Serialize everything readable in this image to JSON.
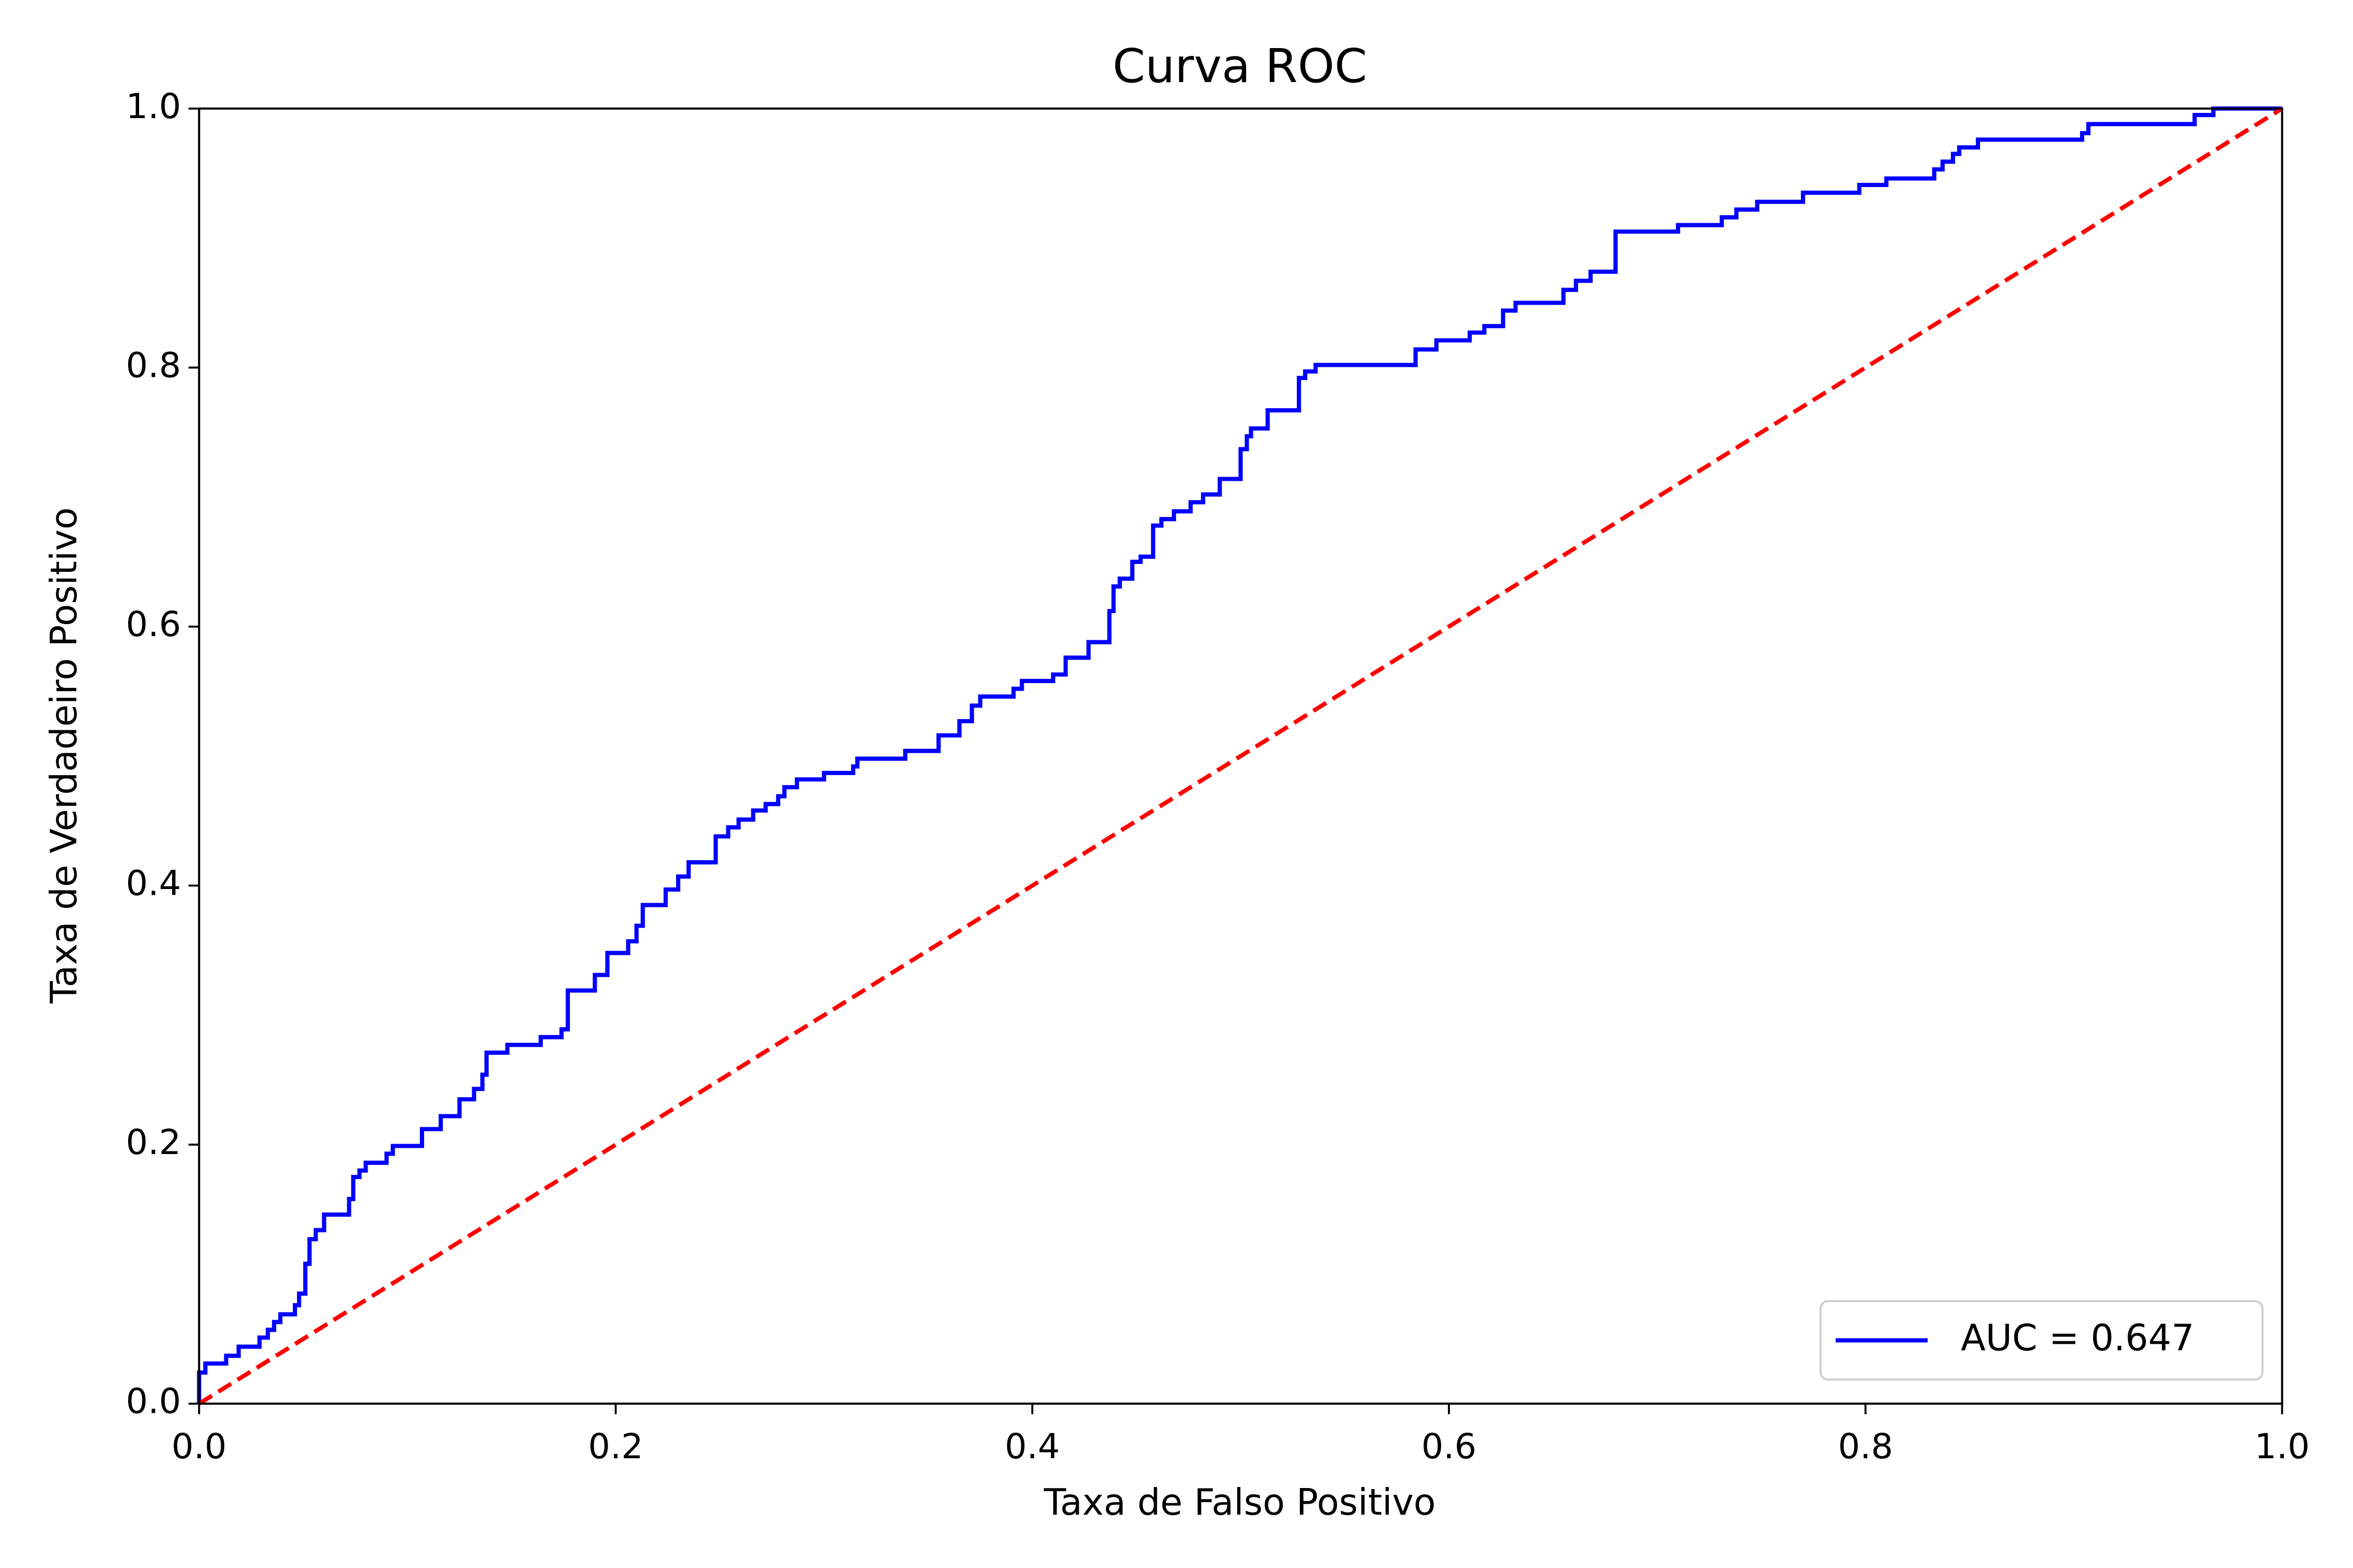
{
  "chart_data": {
    "type": "line",
    "title": "Curva ROC",
    "xlabel": "Taxa de Falso Positivo",
    "ylabel": "Taxa de Verdadeiro Positivo",
    "xlim": [
      0,
      1
    ],
    "ylim": [
      0,
      1
    ],
    "xticks": [
      {
        "value": 0,
        "label": "0.0"
      },
      0.2,
      0.4,
      0.6,
      0.8,
      {
        "value": 1,
        "label": "1.0"
      }
    ],
    "yticks": [
      {
        "value": 0,
        "label": "0.0"
      },
      0.2,
      0.4,
      0.6,
      0.8,
      {
        "value": 1,
        "label": "1.0"
      }
    ],
    "grid": false,
    "legend": "lower right",
    "series": [
      {
        "name": "AUC = 0.647",
        "color": "#0000ff",
        "linestyle": "solid",
        "x": [
          0,
          0,
          0.003,
          0.003,
          0.013,
          0.013,
          0.019,
          0.019,
          0.029,
          0.029,
          0.033,
          0.033,
          0.036,
          0.036,
          0.039,
          0.039,
          0.046,
          0.046,
          0.048,
          0.048,
          0.051,
          0.051,
          0.053,
          0.053,
          0.056,
          0.056,
          0.06,
          0.06,
          0.072,
          0.072,
          0.074,
          0.074,
          0.077,
          0.077,
          0.08,
          0.08,
          0.09,
          0.09,
          0.093,
          0.093,
          0.107,
          0.107,
          0.116,
          0.116,
          0.125,
          0.125,
          0.132,
          0.132,
          0.136,
          0.136,
          0.138,
          0.138,
          0.148,
          0.148,
          0.164,
          0.164,
          0.174,
          0.174,
          0.177,
          0.177,
          0.19,
          0.19,
          0.196,
          0.196,
          0.206,
          0.206,
          0.21,
          0.21,
          0.213,
          0.213,
          0.224,
          0.224,
          0.23,
          0.23,
          0.235,
          0.235,
          0.248,
          0.248,
          0.254,
          0.254,
          0.259,
          0.259,
          0.266,
          0.266,
          0.272,
          0.272,
          0.278,
          0.278,
          0.281,
          0.281,
          0.287,
          0.287,
          0.3,
          0.3,
          0.314,
          0.314,
          0.316,
          0.316,
          0.339,
          0.339,
          0.355,
          0.355,
          0.365,
          0.365,
          0.371,
          0.371,
          0.375,
          0.375,
          0.391,
          0.391,
          0.395,
          0.395,
          0.41,
          0.41,
          0.416,
          0.416,
          0.427,
          0.427,
          0.437,
          0.437,
          0.439,
          0.439,
          0.442,
          0.442,
          0.448,
          0.448,
          0.452,
          0.452,
          0.458,
          0.458,
          0.462,
          0.462,
          0.468,
          0.468,
          0.476,
          0.476,
          0.482,
          0.482,
          0.49,
          0.49,
          0.5,
          0.5,
          0.503,
          0.503,
          0.505,
          0.505,
          0.513,
          0.513,
          0.528,
          0.528,
          0.531,
          0.531,
          0.536,
          0.536,
          0.584,
          0.584,
          0.594,
          0.594,
          0.61,
          0.61,
          0.617,
          0.617,
          0.626,
          0.626,
          0.632,
          0.632,
          0.655,
          0.655,
          0.661,
          0.661,
          0.668,
          0.668,
          0.68,
          0.68,
          0.71,
          0.71,
          0.731,
          0.731,
          0.738,
          0.738,
          0.748,
          0.748,
          0.77,
          0.77,
          0.797,
          0.797,
          0.81,
          0.81,
          0.833,
          0.833,
          0.837,
          0.837,
          0.842,
          0.842,
          0.845,
          0.845,
          0.854,
          0.854,
          0.904,
          0.904,
          0.907,
          0.907,
          0.958,
          0.958,
          0.967,
          0.967,
          1
        ],
        "values": [
          0,
          0.024,
          0.024,
          0.031,
          0.031,
          0.037,
          0.037,
          0.044,
          0.044,
          0.051,
          0.051,
          0.057,
          0.057,
          0.063,
          0.063,
          0.069,
          0.069,
          0.076,
          0.076,
          0.085,
          0.085,
          0.108,
          0.108,
          0.127,
          0.127,
          0.134,
          0.134,
          0.146,
          0.146,
          0.158,
          0.158,
          0.175,
          0.175,
          0.18,
          0.18,
          0.186,
          0.186,
          0.193,
          0.193,
          0.199,
          0.199,
          0.212,
          0.212,
          0.222,
          0.222,
          0.235,
          0.235,
          0.243,
          0.243,
          0.254,
          0.254,
          0.271,
          0.271,
          0.277,
          0.277,
          0.283,
          0.283,
          0.289,
          0.289,
          0.319,
          0.319,
          0.331,
          0.331,
          0.348,
          0.348,
          0.357,
          0.357,
          0.369,
          0.369,
          0.385,
          0.385,
          0.397,
          0.397,
          0.407,
          0.407,
          0.418,
          0.418,
          0.438,
          0.438,
          0.445,
          0.445,
          0.451,
          0.451,
          0.458,
          0.458,
          0.463,
          0.463,
          0.469,
          0.469,
          0.476,
          0.476,
          0.482,
          0.482,
          0.487,
          0.487,
          0.492,
          0.492,
          0.498,
          0.498,
          0.504,
          0.504,
          0.516,
          0.516,
          0.527,
          0.527,
          0.539,
          0.539,
          0.546,
          0.546,
          0.552,
          0.552,
          0.558,
          0.558,
          0.563,
          0.563,
          0.576,
          0.576,
          0.588,
          0.588,
          0.612,
          0.612,
          0.631,
          0.631,
          0.637,
          0.637,
          0.65,
          0.65,
          0.654,
          0.654,
          0.678,
          0.678,
          0.683,
          0.683,
          0.689,
          0.689,
          0.696,
          0.696,
          0.702,
          0.702,
          0.714,
          0.714,
          0.737,
          0.737,
          0.747,
          0.747,
          0.753,
          0.753,
          0.767,
          0.767,
          0.792,
          0.792,
          0.797,
          0.797,
          0.802,
          0.802,
          0.814,
          0.814,
          0.821,
          0.821,
          0.827,
          0.827,
          0.832,
          0.832,
          0.844,
          0.844,
          0.85,
          0.85,
          0.86,
          0.86,
          0.867,
          0.867,
          0.874,
          0.874,
          0.905,
          0.905,
          0.91,
          0.91,
          0.916,
          0.916,
          0.922,
          0.922,
          0.928,
          0.928,
          0.935,
          0.935,
          0.941,
          0.941,
          0.946,
          0.946,
          0.953,
          0.953,
          0.959,
          0.959,
          0.965,
          0.965,
          0.97,
          0.97,
          0.976,
          0.976,
          0.981,
          0.981,
          0.988,
          0.988,
          0.995,
          0.995,
          1,
          1
        ]
      },
      {
        "color": "#ff0000",
        "linestyle": "dashed",
        "x": [
          0,
          1
        ],
        "values": [
          0,
          1
        ]
      }
    ]
  }
}
